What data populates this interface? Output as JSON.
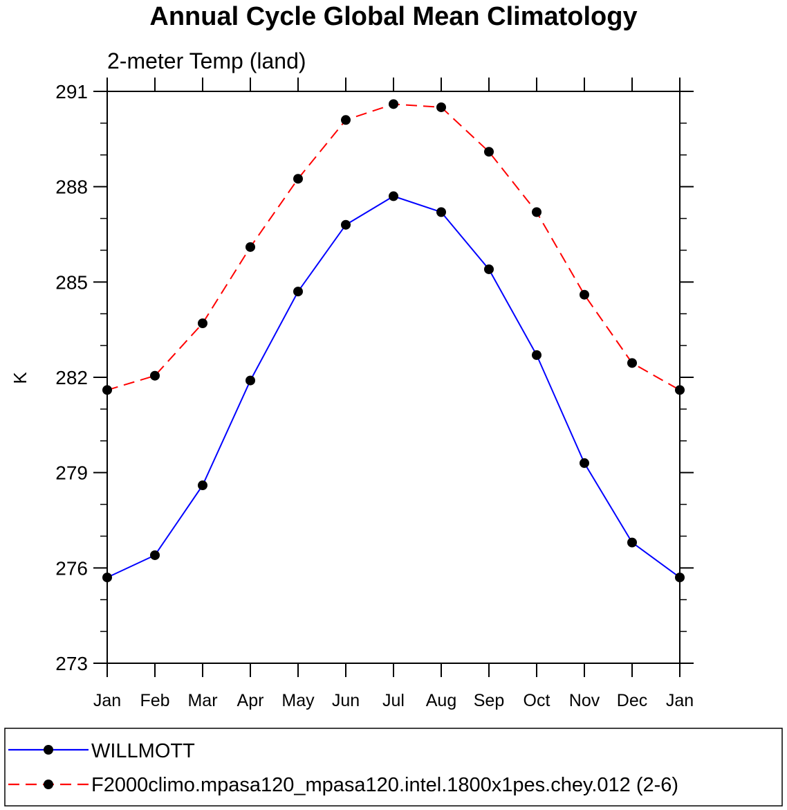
{
  "chart_data": {
    "type": "line",
    "title": "Annual Cycle Global Mean Climatology",
    "subtitle": "2-meter Temp (land)",
    "xlabel": "",
    "ylabel": "K",
    "categories": [
      "Jan",
      "Feb",
      "Mar",
      "Apr",
      "May",
      "Jun",
      "Jul",
      "Aug",
      "Sep",
      "Oct",
      "Nov",
      "Dec",
      "Jan"
    ],
    "ylim": [
      273,
      291
    ],
    "yticks": [
      "273",
      "276",
      "279",
      "282",
      "285",
      "288",
      "291"
    ],
    "grid": false,
    "legend_position": "bottom",
    "series": [
      {
        "name": "WILLMOTT",
        "color": "#0000ff",
        "style": "solid",
        "marker": "circle",
        "values": [
          275.7,
          276.4,
          278.6,
          281.9,
          284.7,
          286.8,
          287.7,
          287.2,
          285.4,
          282.7,
          279.3,
          276.8,
          275.7
        ]
      },
      {
        "name": "F2000climo.mpasa120_mpasa120.intel.1800x1pes.chey.012 (2-6)",
        "color": "#ff0000",
        "style": "dashed",
        "marker": "circle",
        "values": [
          281.6,
          282.05,
          283.7,
          286.1,
          288.25,
          290.1,
          290.6,
          290.5,
          289.1,
          287.2,
          284.6,
          282.45,
          281.6
        ]
      }
    ]
  }
}
